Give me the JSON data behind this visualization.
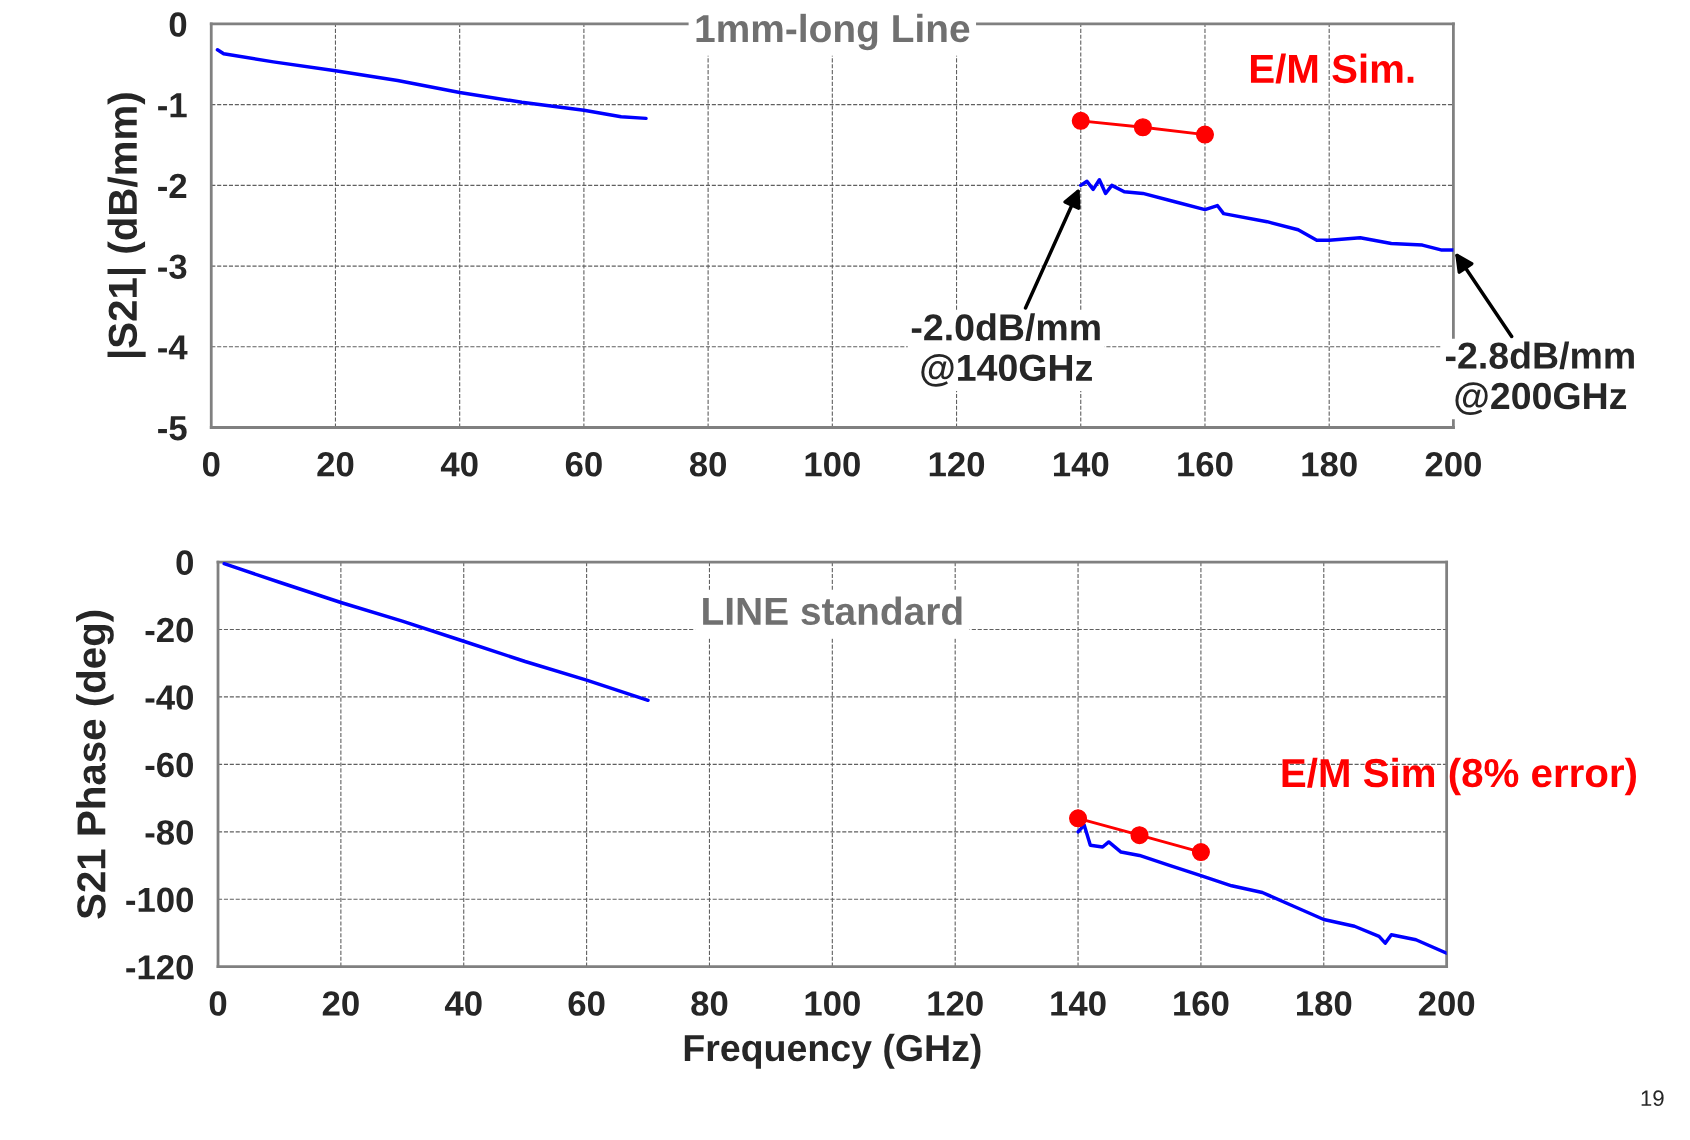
{
  "chart_data": [
    {
      "type": "line",
      "title": "1mm-long Line",
      "ylabel": "|S21| (dB/mm)",
      "xlim": [
        0,
        200
      ],
      "ylim": [
        -5,
        0
      ],
      "xticks": [
        0,
        20,
        40,
        60,
        80,
        100,
        120,
        140,
        160,
        180,
        200
      ],
      "yticks": [
        -5,
        -4,
        -3,
        -2,
        -1,
        0
      ],
      "grid": true,
      "series": [
        {
          "color": "#0000ff",
          "marker": "none",
          "x": [
            1,
            2,
            10,
            20,
            30,
            40,
            50,
            60,
            66,
            70,
            100,
            140,
            141,
            142,
            143,
            144,
            145,
            147,
            150,
            155,
            160,
            162,
            163,
            170,
            175,
            178,
            180,
            185,
            190,
            195,
            198,
            200
          ],
          "values": [
            -0.32,
            -0.37,
            -0.47,
            -0.58,
            -0.7,
            -0.85,
            -0.97,
            -1.07,
            -1.15,
            -1.17,
            null,
            -2.0,
            -1.95,
            -2.05,
            -1.93,
            -2.1,
            -2.0,
            -2.08,
            -2.1,
            -2.2,
            -2.3,
            -2.25,
            -2.35,
            -2.45,
            -2.55,
            -2.68,
            -2.68,
            -2.65,
            -2.72,
            -2.74,
            -2.8,
            -2.8
          ]
        },
        {
          "name": "E/M Sim.",
          "color": "#ff0000",
          "marker": "circle",
          "x": [
            140,
            150,
            160
          ],
          "values": [
            -1.2,
            -1.28,
            -1.37
          ]
        }
      ],
      "annotations": [
        {
          "text": "-2.0dB/mm\n@140GHz",
          "x": 140,
          "y": -2.0
        },
        {
          "text": "-2.8dB/mm\n@200GHz",
          "x": 200,
          "y": -2.8
        }
      ]
    },
    {
      "type": "line",
      "title": "LINE standard",
      "ylabel": "S21 Phase (deg)",
      "xlabel": "Frequency (GHz)",
      "xlim": [
        0,
        200
      ],
      "ylim": [
        -120,
        0
      ],
      "xticks": [
        0,
        20,
        40,
        60,
        80,
        100,
        120,
        140,
        160,
        180,
        200
      ],
      "yticks": [
        -120,
        -100,
        -80,
        -60,
        -40,
        -20,
        0
      ],
      "grid": true,
      "series": [
        {
          "color": "#0000ff",
          "marker": "none",
          "x": [
            1,
            10,
            20,
            30,
            40,
            50,
            60,
            70,
            100,
            140,
            141,
            142,
            144,
            145,
            147,
            150,
            155,
            160,
            165,
            170,
            175,
            180,
            185,
            189,
            190,
            191,
            195,
            200
          ],
          "values": [
            -0.5,
            -6,
            -12,
            -17.5,
            -23.5,
            -29.5,
            -35,
            -41,
            null,
            -80,
            -78,
            -84,
            -84.5,
            -83,
            -86,
            -87,
            -90,
            -93,
            -96,
            -98,
            -102,
            -106,
            -108,
            -111,
            -113,
            -110.5,
            -112,
            -116
          ]
        },
        {
          "name": "E/M Sim (8% error)",
          "color": "#ff0000",
          "marker": "circle",
          "x": [
            140,
            150,
            160
          ],
          "values": [
            -76,
            -81,
            -86
          ]
        }
      ],
      "annotations": [
        "19"
      ]
    }
  ]
}
